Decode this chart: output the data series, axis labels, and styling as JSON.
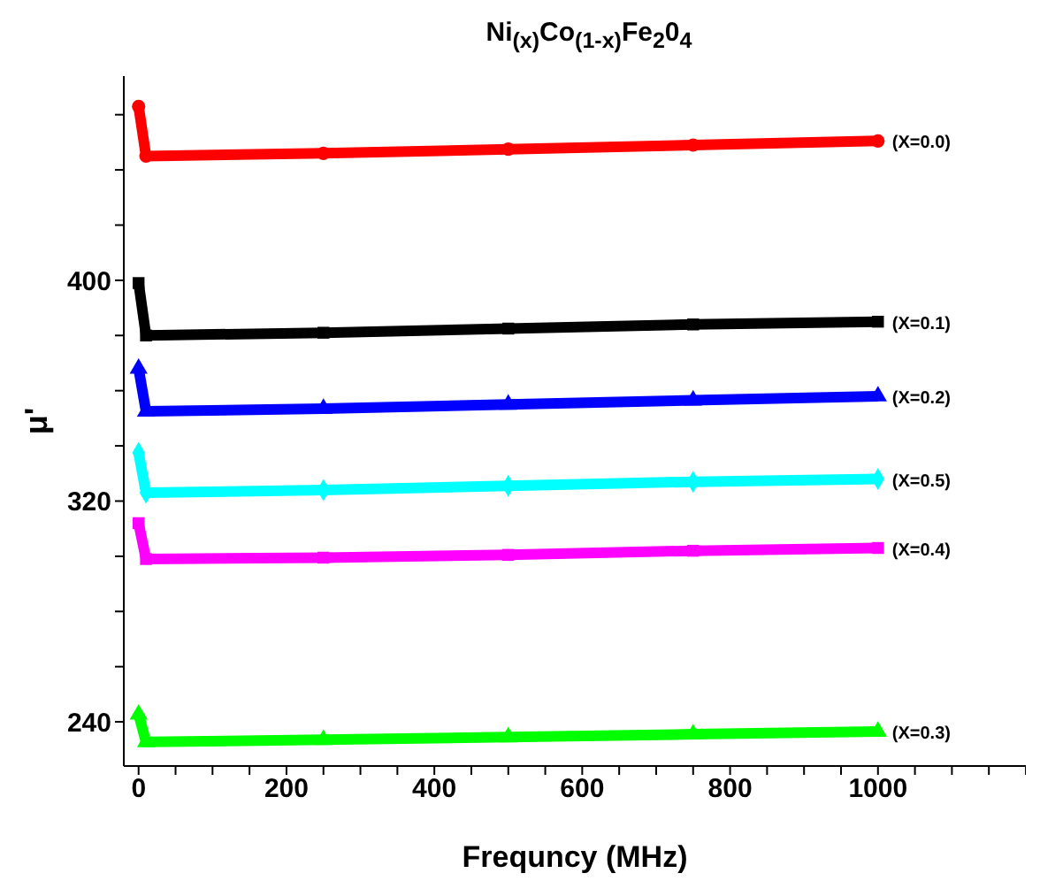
{
  "chart_data": {
    "type": "line",
    "title": "Ni$_{(x)}$Co$_{(1-x)}$Fe$_{2}$0$_{4}$",
    "xlabel": "Frequncy (MHz)",
    "ylabel": "μ'",
    "x": [
      0,
      10,
      250,
      500,
      750,
      1000
    ],
    "series": [
      {
        "name": "(X=0.0)",
        "color": "#ff0000",
        "marker": "circle",
        "values": [
          463,
          445,
          446,
          447.5,
          449,
          450.5
        ]
      },
      {
        "name": "(X=0.1)",
        "color": "#000000",
        "marker": "square",
        "values": [
          399,
          380,
          381,
          382.5,
          384,
          385
        ]
      },
      {
        "name": "(X=0.2)",
        "color": "#0000ff",
        "marker": "triangle",
        "values": [
          368,
          352.5,
          353.5,
          355,
          356.5,
          358
        ]
      },
      {
        "name": "(X=0.5)",
        "color": "#00ffff",
        "marker": "diamond",
        "values": [
          337.5,
          323,
          324,
          325.5,
          327,
          328
        ]
      },
      {
        "name": "(X=0.4)",
        "color": "#ff00ff",
        "marker": "square",
        "values": [
          312,
          299,
          299.5,
          300.5,
          302,
          303
        ]
      },
      {
        "name": "(X=0.3)",
        "color": "#00ff00",
        "marker": "triangle",
        "values": [
          242.7,
          232.7,
          233.5,
          234.5,
          235.5,
          236.5
        ]
      }
    ],
    "xlim": [
      -20,
      1200
    ],
    "ylim": [
      224,
      474
    ],
    "xticks": [
      0,
      {
        "value": 50,
        "label": null
      },
      {
        "value": 100,
        "label": null
      },
      {
        "value": 150,
        "label": null
      },
      200,
      {
        "value": 250,
        "label": null
      },
      {
        "value": 300,
        "label": null
      },
      {
        "value": 350,
        "label": null
      },
      400,
      {
        "value": 450,
        "label": null
      },
      {
        "value": 500,
        "label": null
      },
      {
        "value": 550,
        "label": null
      },
      600,
      {
        "value": 650,
        "label": null
      },
      {
        "value": 700,
        "label": null
      },
      {
        "value": 750,
        "label": null
      },
      800,
      {
        "value": 850,
        "label": null
      },
      {
        "value": 900,
        "label": null
      },
      {
        "value": 950,
        "label": null
      },
      1000,
      {
        "value": 1050,
        "label": null
      },
      {
        "value": 1100,
        "label": null
      },
      {
        "value": 1150,
        "label": null
      },
      {
        "value": 1200,
        "label": null
      }
    ],
    "yticks": [
      240,
      {
        "value": 260,
        "label": null
      },
      {
        "value": 280,
        "label": null
      },
      {
        "value": 300,
        "label": null
      },
      320,
      {
        "value": 340,
        "label": null
      },
      {
        "value": 360,
        "label": null
      },
      {
        "value": 380,
        "label": null
      },
      400,
      {
        "value": 420,
        "label": null
      },
      {
        "value": 440,
        "label": null
      },
      {
        "value": 460,
        "label": null
      }
    ],
    "grid": false,
    "legend": false
  }
}
